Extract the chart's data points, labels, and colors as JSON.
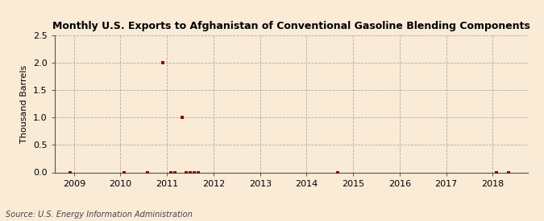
{
  "title": "Monthly U.S. Exports to Afghanistan of Conventional Gasoline Blending Components",
  "ylabel": "Thousand Barrels",
  "source": "Source: U.S. Energy Information Administration",
  "background_color": "#faebd7",
  "marker_color": "#8b0000",
  "xlim": [
    2008.58,
    2018.75
  ],
  "ylim": [
    0.0,
    2.5
  ],
  "yticks": [
    0.0,
    0.5,
    1.0,
    1.5,
    2.0,
    2.5
  ],
  "xticks": [
    2009,
    2010,
    2011,
    2012,
    2013,
    2014,
    2015,
    2016,
    2017,
    2018
  ],
  "data_points": [
    [
      2008.917,
      0.0
    ],
    [
      2010.083,
      0.0
    ],
    [
      2010.583,
      0.0
    ],
    [
      2010.917,
      2.0
    ],
    [
      2011.083,
      0.0
    ],
    [
      2011.167,
      0.0
    ],
    [
      2011.333,
      1.0
    ],
    [
      2011.417,
      0.0
    ],
    [
      2011.5,
      0.0
    ],
    [
      2011.583,
      0.0
    ],
    [
      2011.667,
      0.0
    ],
    [
      2014.667,
      0.0
    ],
    [
      2018.083,
      0.0
    ],
    [
      2018.333,
      0.0
    ]
  ]
}
